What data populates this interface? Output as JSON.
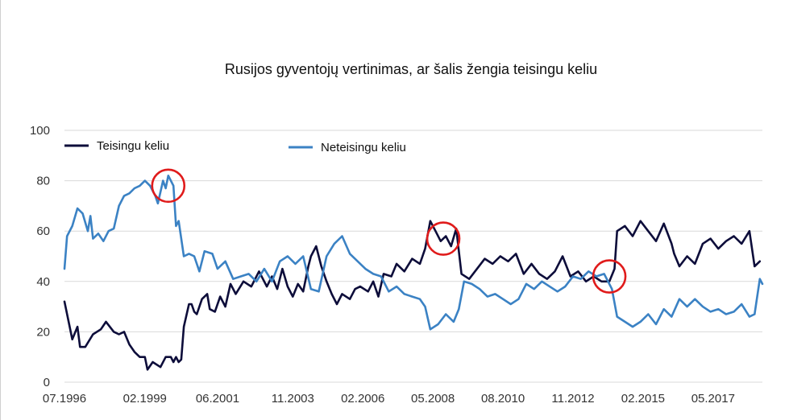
{
  "chart_data": {
    "type": "line",
    "title": "Rusijos gyventojų vertinimas, ar šalis žengia teisingu keliu",
    "xlabel": "",
    "ylabel": "",
    "ylim": [
      0,
      100
    ],
    "yticks": [
      "0",
      "20",
      "40",
      "60",
      "80",
      "100"
    ],
    "xlim": [
      "1996-07",
      "2018-12"
    ],
    "xticks": [
      "07.1996",
      "02.1999",
      "06.2001",
      "11.2003",
      "02.2006",
      "05.2008",
      "08.2010",
      "11.2012",
      "02.2015",
      "05.2017"
    ],
    "grid": true,
    "legend_position": "top",
    "series": [
      {
        "name": "Teisingu keliu",
        "color": "#0d0d3a",
        "points": [
          [
            "1996-07",
            32
          ],
          [
            "1996-10",
            17
          ],
          [
            "1996-12",
            22
          ],
          [
            "1997-01",
            14
          ],
          [
            "1997-03",
            14
          ],
          [
            "1997-06",
            19
          ],
          [
            "1997-09",
            21
          ],
          [
            "1997-11",
            24
          ],
          [
            "1998-02",
            20
          ],
          [
            "1998-04",
            19
          ],
          [
            "1998-06",
            20
          ],
          [
            "1998-08",
            15
          ],
          [
            "1998-10",
            12
          ],
          [
            "1998-12",
            10
          ],
          [
            "1999-02",
            10
          ],
          [
            "1999-03",
            5
          ],
          [
            "1999-05",
            8
          ],
          [
            "1999-08",
            6
          ],
          [
            "1999-10",
            10
          ],
          [
            "1999-12",
            10
          ],
          [
            "2000-01",
            8
          ],
          [
            "2000-02",
            10
          ],
          [
            "2000-03",
            8
          ],
          [
            "2000-04",
            9
          ],
          [
            "2000-05",
            22
          ],
          [
            "2000-07",
            31
          ],
          [
            "2000-08",
            31
          ],
          [
            "2000-09",
            28
          ],
          [
            "2000-10",
            27
          ],
          [
            "2000-12",
            33
          ],
          [
            "2001-02",
            35
          ],
          [
            "2001-03",
            29
          ],
          [
            "2001-05",
            28
          ],
          [
            "2001-07",
            34
          ],
          [
            "2001-09",
            30
          ],
          [
            "2001-11",
            39
          ],
          [
            "2002-01",
            35
          ],
          [
            "2002-04",
            40
          ],
          [
            "2002-07",
            38
          ],
          [
            "2002-10",
            44
          ],
          [
            "2003-01",
            38
          ],
          [
            "2003-03",
            42
          ],
          [
            "2003-05",
            37
          ],
          [
            "2003-07",
            45
          ],
          [
            "2003-09",
            38
          ],
          [
            "2003-11",
            34
          ],
          [
            "2004-01",
            39
          ],
          [
            "2004-03",
            36
          ],
          [
            "2004-05",
            46
          ],
          [
            "2004-06",
            50
          ],
          [
            "2004-08",
            54
          ],
          [
            "2004-10",
            46
          ],
          [
            "2004-12",
            40
          ],
          [
            "2005-02",
            35
          ],
          [
            "2005-04",
            31
          ],
          [
            "2005-06",
            35
          ],
          [
            "2005-09",
            33
          ],
          [
            "2005-11",
            37
          ],
          [
            "2006-01",
            38
          ],
          [
            "2006-04",
            36
          ],
          [
            "2006-06",
            40
          ],
          [
            "2006-08",
            34
          ],
          [
            "2006-10",
            43
          ],
          [
            "2007-01",
            42
          ],
          [
            "2007-03",
            47
          ],
          [
            "2007-06",
            44
          ],
          [
            "2007-09",
            49
          ],
          [
            "2007-12",
            47
          ],
          [
            "2008-02",
            53
          ],
          [
            "2008-04",
            64
          ],
          [
            "2008-06",
            60
          ],
          [
            "2008-08",
            56
          ],
          [
            "2008-10",
            58
          ],
          [
            "2008-12",
            54
          ],
          [
            "2009-02",
            61
          ],
          [
            "2009-04",
            43
          ],
          [
            "2009-07",
            41
          ],
          [
            "2009-10",
            45
          ],
          [
            "2010-01",
            49
          ],
          [
            "2010-04",
            47
          ],
          [
            "2010-07",
            50
          ],
          [
            "2010-10",
            48
          ],
          [
            "2011-01",
            51
          ],
          [
            "2011-04",
            43
          ],
          [
            "2011-07",
            47
          ],
          [
            "2011-10",
            43
          ],
          [
            "2012-01",
            41
          ],
          [
            "2012-04",
            44
          ],
          [
            "2012-07",
            50
          ],
          [
            "2012-10",
            42
          ],
          [
            "2013-01",
            44
          ],
          [
            "2013-04",
            40
          ],
          [
            "2013-07",
            42
          ],
          [
            "2013-10",
            40
          ],
          [
            "2014-01",
            40
          ],
          [
            "2014-03",
            45
          ],
          [
            "2014-04",
            60
          ],
          [
            "2014-07",
            62
          ],
          [
            "2014-10",
            58
          ],
          [
            "2015-01",
            64
          ],
          [
            "2015-04",
            60
          ],
          [
            "2015-07",
            56
          ],
          [
            "2015-10",
            63
          ],
          [
            "2016-01",
            55
          ],
          [
            "2016-02",
            51
          ],
          [
            "2016-04",
            46
          ],
          [
            "2016-07",
            50
          ],
          [
            "2016-10",
            47
          ],
          [
            "2017-01",
            55
          ],
          [
            "2017-04",
            57
          ],
          [
            "2017-07",
            53
          ],
          [
            "2017-10",
            56
          ],
          [
            "2018-01",
            58
          ],
          [
            "2018-04",
            55
          ],
          [
            "2018-07",
            60
          ],
          [
            "2018-09",
            46
          ],
          [
            "2018-11",
            48
          ]
        ]
      },
      {
        "name": "Neteisingu keliu",
        "color": "#3b82c4",
        "points": [
          [
            "1996-07",
            45
          ],
          [
            "1996-08",
            58
          ],
          [
            "1996-10",
            62
          ],
          [
            "1996-12",
            69
          ],
          [
            "1997-02",
            67
          ],
          [
            "1997-04",
            60
          ],
          [
            "1997-05",
            66
          ],
          [
            "1997-06",
            57
          ],
          [
            "1997-08",
            59
          ],
          [
            "1997-10",
            56
          ],
          [
            "1997-12",
            60
          ],
          [
            "1998-02",
            61
          ],
          [
            "1998-04",
            70
          ],
          [
            "1998-06",
            74
          ],
          [
            "1998-08",
            75
          ],
          [
            "1998-10",
            77
          ],
          [
            "1998-12",
            78
          ],
          [
            "1999-02",
            80
          ],
          [
            "1999-04",
            78
          ],
          [
            "1999-06",
            74
          ],
          [
            "1999-07",
            71
          ],
          [
            "1999-09",
            80
          ],
          [
            "1999-10",
            77
          ],
          [
            "1999-11",
            82
          ],
          [
            "2000-01",
            78
          ],
          [
            "2000-02",
            62
          ],
          [
            "2000-03",
            64
          ],
          [
            "2000-05",
            50
          ],
          [
            "2000-07",
            51
          ],
          [
            "2000-09",
            50
          ],
          [
            "2000-11",
            44
          ],
          [
            "2001-01",
            52
          ],
          [
            "2001-04",
            51
          ],
          [
            "2001-06",
            45
          ],
          [
            "2001-09",
            48
          ],
          [
            "2001-12",
            41
          ],
          [
            "2002-03",
            42
          ],
          [
            "2002-06",
            43
          ],
          [
            "2002-09",
            40
          ],
          [
            "2002-12",
            45
          ],
          [
            "2003-03",
            40
          ],
          [
            "2003-06",
            48
          ],
          [
            "2003-09",
            50
          ],
          [
            "2003-12",
            47
          ],
          [
            "2004-03",
            50
          ],
          [
            "2004-06",
            37
          ],
          [
            "2004-09",
            36
          ],
          [
            "2004-12",
            50
          ],
          [
            "2005-03",
            55
          ],
          [
            "2005-06",
            58
          ],
          [
            "2005-09",
            51
          ],
          [
            "2005-12",
            48
          ],
          [
            "2006-03",
            45
          ],
          [
            "2006-06",
            43
          ],
          [
            "2006-09",
            42
          ],
          [
            "2006-12",
            36
          ],
          [
            "2007-03",
            38
          ],
          [
            "2007-06",
            35
          ],
          [
            "2007-09",
            34
          ],
          [
            "2007-12",
            33
          ],
          [
            "2008-02",
            30
          ],
          [
            "2008-04",
            21
          ],
          [
            "2008-07",
            23
          ],
          [
            "2008-10",
            27
          ],
          [
            "2009-01",
            24
          ],
          [
            "2009-03",
            29
          ],
          [
            "2009-05",
            40
          ],
          [
            "2009-08",
            39
          ],
          [
            "2009-11",
            37
          ],
          [
            "2010-02",
            34
          ],
          [
            "2010-05",
            35
          ],
          [
            "2010-08",
            33
          ],
          [
            "2010-11",
            31
          ],
          [
            "2011-02",
            33
          ],
          [
            "2011-05",
            39
          ],
          [
            "2011-08",
            37
          ],
          [
            "2011-11",
            40
          ],
          [
            "2012-02",
            38
          ],
          [
            "2012-05",
            36
          ],
          [
            "2012-08",
            38
          ],
          [
            "2012-11",
            42
          ],
          [
            "2013-02",
            41
          ],
          [
            "2013-05",
            44
          ],
          [
            "2013-08",
            42
          ],
          [
            "2013-11",
            43
          ],
          [
            "2014-02",
            37
          ],
          [
            "2014-04",
            26
          ],
          [
            "2014-07",
            24
          ],
          [
            "2014-10",
            22
          ],
          [
            "2015-01",
            24
          ],
          [
            "2015-04",
            27
          ],
          [
            "2015-07",
            23
          ],
          [
            "2015-10",
            29
          ],
          [
            "2016-01",
            26
          ],
          [
            "2016-04",
            33
          ],
          [
            "2016-07",
            30
          ],
          [
            "2016-10",
            33
          ],
          [
            "2017-01",
            30
          ],
          [
            "2017-04",
            28
          ],
          [
            "2017-07",
            29
          ],
          [
            "2017-10",
            27
          ],
          [
            "2018-01",
            28
          ],
          [
            "2018-04",
            31
          ],
          [
            "2018-07",
            26
          ],
          [
            "2018-09",
            27
          ],
          [
            "2018-11",
            41
          ],
          [
            "2018-12",
            39
          ]
        ]
      }
    ],
    "annotations": [
      {
        "type": "circle",
        "color": "#e01b1b",
        "x": "1999-11",
        "y": 78
      },
      {
        "type": "circle",
        "color": "#e01b1b",
        "x": "2008-09",
        "y": 57
      },
      {
        "type": "circle",
        "color": "#e01b1b",
        "x": "2014-01",
        "y": 42
      }
    ]
  }
}
